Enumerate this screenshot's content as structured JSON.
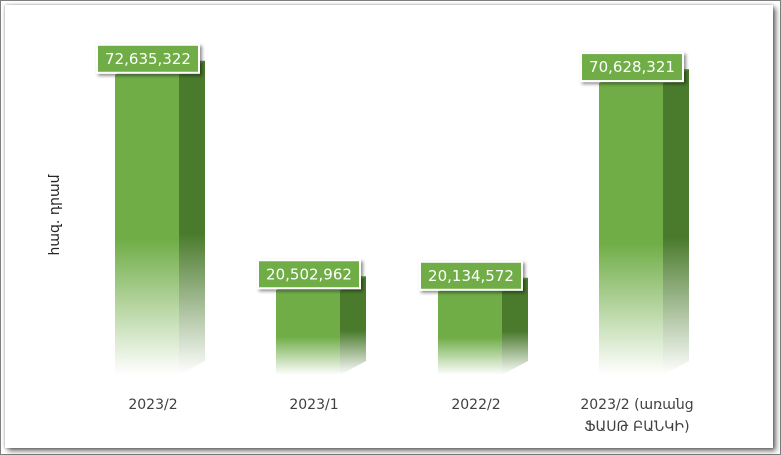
{
  "chart_data": {
    "type": "bar",
    "ylabel": "հազ. դրամ",
    "categories": [
      [
        "2023/2"
      ],
      [
        "2023/1"
      ],
      [
        "2022/2"
      ],
      [
        "2023/2 (առանց",
        "ՖԱՍԹ ԲԱՆԿԻ)"
      ]
    ],
    "values": [
      72635322,
      20502962,
      20134572,
      70628321
    ],
    "data_labels": [
      "72,635,322",
      "20,502,962",
      "20,134,572",
      "70,628,321"
    ],
    "ylim": [
      0,
      75000000
    ],
    "grid": false,
    "legend": "none",
    "colors": {
      "bar_front": "#70ad47",
      "bar_side": "#4a7a2c",
      "bar_top": "#5d9639",
      "label_bg": "#70ad47",
      "label_border": "#ffffff"
    }
  }
}
